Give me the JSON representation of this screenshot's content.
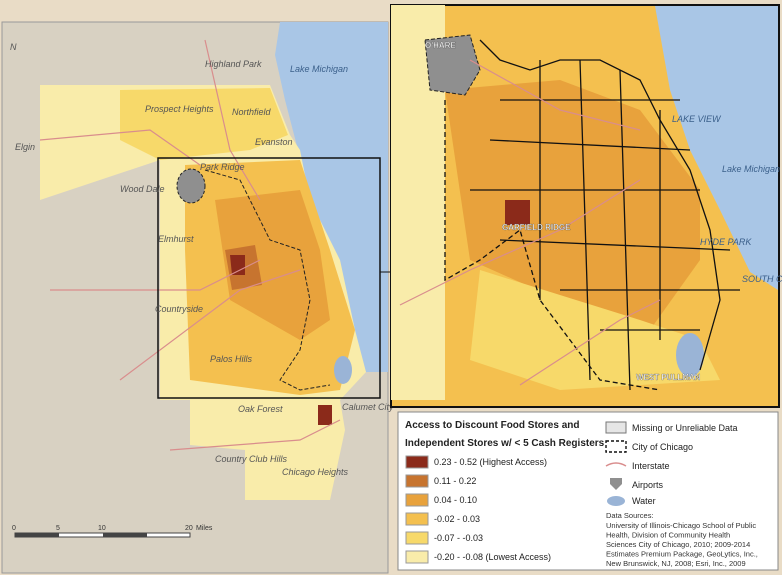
{
  "left_map": {
    "north_label": "N",
    "places": [
      "Highland Park",
      "Prospect Heights",
      "Northfield",
      "Elgin",
      "Evanston",
      "Park Ridge",
      "Wood Dale",
      "Elmhurst",
      "Countryside",
      "Palos Hills",
      "Oak Forest",
      "Calumet City",
      "Country Club Hills",
      "Chicago Heights"
    ],
    "water": [
      "Lake Michigan"
    ],
    "scale": {
      "labels": [
        "0",
        "5",
        "10",
        "20"
      ],
      "unit": "Miles"
    }
  },
  "inset_map": {
    "places": [
      "O'HARE",
      "LAKE VIEW",
      "HYDE PARK",
      "SOUTH CHICAGO",
      "GARFIELD RIDGE",
      "WEST PULLMAN"
    ],
    "water": [
      "Lake Michigan"
    ]
  },
  "legend": {
    "title_lines": [
      "Access to Discount Food Stores and",
      "Independent Stores w/ < 5 Cash Registers"
    ],
    "classes": [
      {
        "label": "0.23 - 0.52 (Highest Access)",
        "color": "#8b2a1a"
      },
      {
        "label": "0.11 - 0.22",
        "color": "#c7742f"
      },
      {
        "label": "0.04 - 0.10",
        "color": "#e8a23c"
      },
      {
        "label": "-0.02 - 0.03",
        "color": "#f4c04f"
      },
      {
        "label": "-0.07 - -0.03",
        "color": "#f7d96a"
      },
      {
        "label": "-0.20 - -0.08 (Lowest Access)",
        "color": "#f9ecaa"
      }
    ],
    "other_items": [
      "Missing or Unreliable Data",
      "City of Chicago",
      "Interstate",
      "Airports",
      "Water"
    ],
    "sources_title": "Data Sources:",
    "sources_lines": [
      "University of Illinois-Chicago School of Public",
      "Health, Division of Community Health",
      "Sciences City of Chicago, 2010; 2009-2014",
      "Estimates Premium Package, GeoLytics, Inc.,",
      "New Brunswick, NJ, 2008; Esri, Inc., 2009"
    ]
  }
}
